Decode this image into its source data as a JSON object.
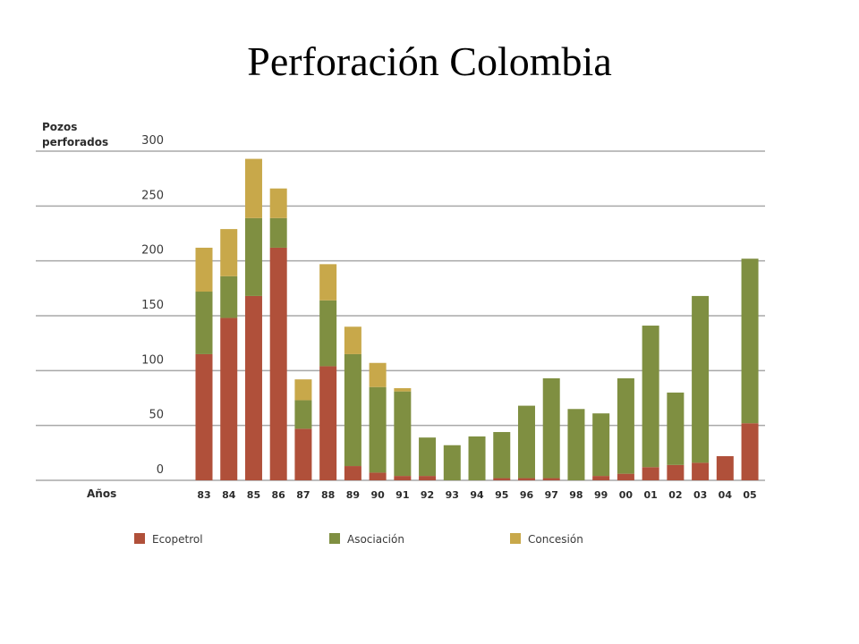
{
  "title": "Perforación Colombia",
  "chart_data": {
    "type": "bar",
    "stacked": true,
    "ylabel": "Pozos perforados",
    "xlabel": "Años",
    "ylim": [
      0,
      300
    ],
    "yticks": [
      0,
      50,
      100,
      150,
      200,
      250,
      300
    ],
    "grid": true,
    "legend_position": "bottom",
    "categories": [
      "83",
      "84",
      "85",
      "86",
      "87",
      "88",
      "89",
      "90",
      "91",
      "92",
      "93",
      "94",
      "95",
      "96",
      "97",
      "98",
      "99",
      "00",
      "01",
      "02",
      "03",
      "04",
      "05"
    ],
    "series": [
      {
        "name": "Ecopetrol",
        "color": "#b0503a",
        "values": [
          115,
          148,
          168,
          212,
          47,
          104,
          13,
          7,
          4,
          4,
          0,
          0,
          2,
          2,
          2,
          0,
          4,
          6,
          12,
          14,
          16,
          22,
          52
        ]
      },
      {
        "name": "Asociación",
        "color": "#7f8f41",
        "values": [
          57,
          38,
          71,
          27,
          26,
          60,
          102,
          78,
          77,
          35,
          32,
          40,
          42,
          66,
          91,
          65,
          57,
          87,
          129,
          66,
          152,
          0,
          150
        ]
      },
      {
        "name": "Concesión",
        "color": "#c8a84a",
        "values": [
          40,
          43,
          54,
          27,
          19,
          33,
          25,
          22,
          3,
          0,
          0,
          0,
          0,
          0,
          0,
          0,
          0,
          0,
          0,
          0,
          0,
          0,
          0
        ]
      }
    ]
  }
}
